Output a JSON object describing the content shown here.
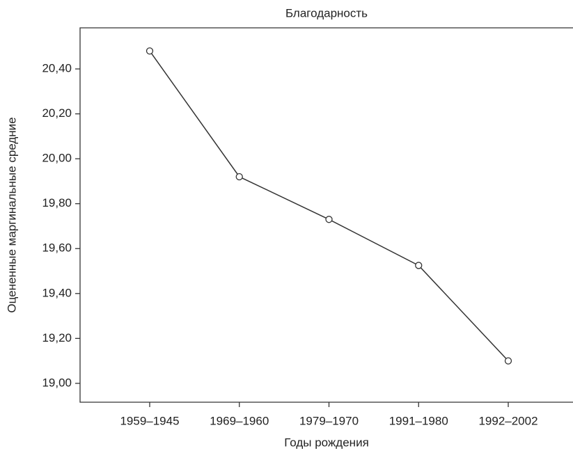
{
  "chart_data": {
    "type": "line",
    "title": "Благодарность",
    "x_label": "Годы рождения",
    "y_label": "Оцененные маргинальные средние",
    "categories": [
      "1959–1945",
      "1969–1960",
      "1979–1970",
      "1991–1980",
      "1992–2002"
    ],
    "values": [
      20.48,
      19.92,
      19.73,
      19.525,
      19.1
    ],
    "color": "#333333",
    "ylim": [
      18.916,
      20.583
    ],
    "yticks": [
      {
        "value": 19.0,
        "label": "19,00"
      },
      {
        "value": 19.2,
        "label": "19,20"
      },
      {
        "value": 19.4,
        "label": "19,40"
      },
      {
        "value": 19.6,
        "label": "19,60"
      },
      {
        "value": 19.8,
        "label": "19,80"
      },
      {
        "value": 20.0,
        "label": "20,00"
      },
      {
        "value": 20.2,
        "label": "20,20"
      },
      {
        "value": 20.4,
        "label": "20,40"
      }
    ],
    "grid": false
  }
}
